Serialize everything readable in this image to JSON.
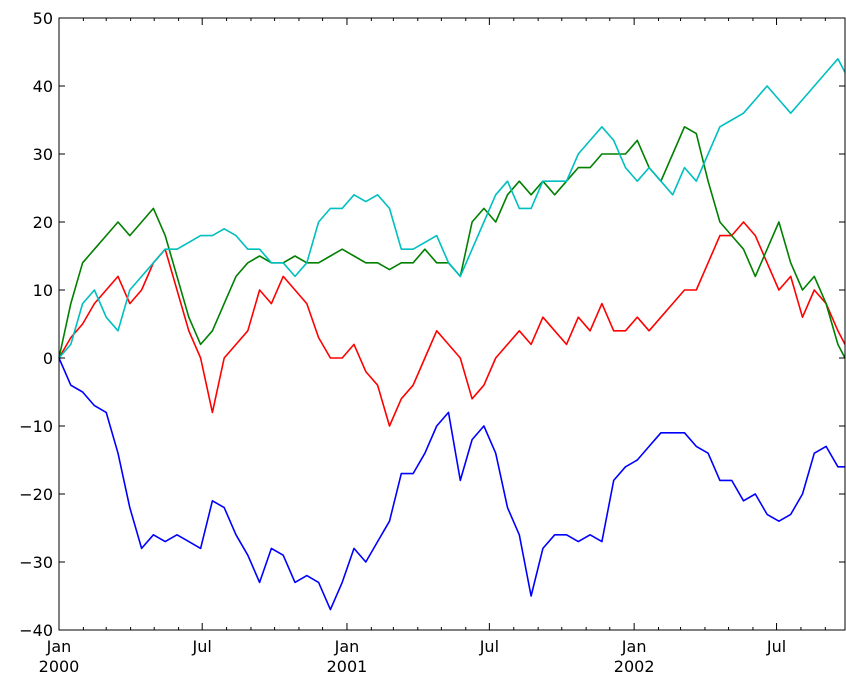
{
  "chart_data": {
    "type": "line",
    "title": "",
    "xlabel": "",
    "ylabel": "",
    "xlim": [
      "2000-01-01",
      "2002-09-26"
    ],
    "ylim": [
      -40,
      50
    ],
    "grid": false,
    "legend": "none",
    "yticks": [
      -40,
      -30,
      -20,
      -10,
      0,
      10,
      20,
      30,
      40,
      50
    ],
    "yticklabels": [
      "−40",
      "−30",
      "−20",
      "−10",
      "0",
      "10",
      "20",
      "30",
      "40",
      "50"
    ],
    "xticks": [
      {
        "date": "2000-01-01",
        "label": "Jan",
        "sublabel": "2000"
      },
      {
        "date": "2000-07-01",
        "label": "Jul",
        "sublabel": ""
      },
      {
        "date": "2001-01-01",
        "label": "Jan",
        "sublabel": "2001"
      },
      {
        "date": "2001-07-01",
        "label": "Jul",
        "sublabel": ""
      },
      {
        "date": "2002-01-01",
        "label": "Jan",
        "sublabel": "2002"
      },
      {
        "date": "2002-07-01",
        "label": "Jul",
        "sublabel": ""
      }
    ],
    "x": [
      "2000-01-01",
      "2000-01-16",
      "2000-01-31",
      "2000-02-15",
      "2000-03-01",
      "2000-03-16",
      "2000-03-31",
      "2000-04-15",
      "2000-04-30",
      "2000-05-15",
      "2000-05-30",
      "2000-06-14",
      "2000-06-29",
      "2000-07-14",
      "2000-07-29",
      "2000-08-13",
      "2000-08-28",
      "2000-09-12",
      "2000-09-27",
      "2000-10-12",
      "2000-10-27",
      "2000-11-11",
      "2000-11-26",
      "2000-12-11",
      "2000-12-26",
      "2001-01-10",
      "2001-01-25",
      "2001-02-09",
      "2001-02-24",
      "2001-03-11",
      "2001-03-26",
      "2001-04-10",
      "2001-04-25",
      "2001-05-10",
      "2001-05-25",
      "2001-06-09",
      "2001-06-24",
      "2001-07-09",
      "2001-07-24",
      "2001-08-08",
      "2001-08-23",
      "2001-09-07",
      "2001-09-22",
      "2001-10-07",
      "2001-10-22",
      "2001-11-06",
      "2001-11-21",
      "2001-12-06",
      "2001-12-21",
      "2002-01-05",
      "2002-01-20",
      "2002-02-04",
      "2002-02-19",
      "2002-03-06",
      "2002-03-21",
      "2002-04-05",
      "2002-04-20",
      "2002-05-05",
      "2002-05-20",
      "2002-06-04",
      "2002-06-19",
      "2002-07-04",
      "2002-07-19",
      "2002-08-03",
      "2002-08-18",
      "2002-09-02",
      "2002-09-17",
      "2002-09-26"
    ],
    "series": [
      {
        "color": "#0000ff",
        "values": [
          0,
          -4,
          -5,
          -7,
          -8,
          -14,
          -22,
          -28,
          -26,
          -27,
          -26,
          -27,
          -28,
          -21,
          -22,
          -26,
          -29,
          -33,
          -28,
          -29,
          -33,
          -32,
          -33,
          -37,
          -33,
          -28,
          -30,
          -27,
          -24,
          -17,
          -17,
          -14,
          -10,
          -8,
          -18,
          -12,
          -10,
          -14,
          -22,
          -26,
          -35,
          -28,
          -26,
          -26,
          -27,
          -26,
          -27,
          -18,
          -16,
          -15,
          -13,
          -11,
          -11,
          -11,
          -13,
          -14,
          -18,
          -18,
          -21,
          -20,
          -23,
          -24,
          -23,
          -20,
          -14,
          -13,
          -16,
          -16
        ]
      },
      {
        "color": "#ff0000",
        "values": [
          0,
          3,
          5,
          8,
          10,
          12,
          8,
          10,
          14,
          16,
          10,
          4,
          0,
          -8,
          0,
          2,
          4,
          10,
          8,
          12,
          10,
          8,
          3,
          0,
          0,
          2,
          -2,
          -4,
          -10,
          -6,
          -4,
          0,
          4,
          2,
          0,
          -6,
          -4,
          0,
          2,
          4,
          2,
          6,
          4,
          2,
          6,
          4,
          8,
          4,
          4,
          6,
          4,
          6,
          8,
          10,
          10,
          14,
          18,
          18,
          20,
          18,
          14,
          10,
          12,
          6,
          10,
          8,
          4,
          2
        ]
      },
      {
        "color": "#008000",
        "values": [
          0,
          8,
          14,
          16,
          18,
          20,
          18,
          20,
          22,
          18,
          12,
          6,
          2,
          4,
          8,
          12,
          14,
          15,
          14,
          14,
          15,
          14,
          14,
          15,
          16,
          15,
          14,
          14,
          13,
          14,
          14,
          16,
          14,
          14,
          12,
          20,
          22,
          20,
          24,
          26,
          24,
          26,
          24,
          26,
          28,
          28,
          30,
          30,
          30,
          32,
          28,
          26,
          30,
          34,
          33,
          26,
          20,
          18,
          16,
          12,
          16,
          20,
          14,
          10,
          12,
          8,
          2,
          0
        ]
      },
      {
        "color": "#00bfbf",
        "values": [
          0,
          2,
          8,
          10,
          6,
          4,
          10,
          12,
          14,
          16,
          16,
          17,
          18,
          18,
          19,
          18,
          16,
          16,
          14,
          14,
          12,
          14,
          20,
          22,
          22,
          24,
          23,
          24,
          22,
          16,
          16,
          17,
          18,
          14,
          12,
          16,
          20,
          24,
          26,
          22,
          22,
          26,
          26,
          26,
          30,
          32,
          34,
          32,
          28,
          26,
          28,
          26,
          24,
          28,
          26,
          30,
          34,
          35,
          36,
          38,
          40,
          38,
          36,
          38,
          40,
          42,
          44,
          42
        ]
      }
    ]
  }
}
